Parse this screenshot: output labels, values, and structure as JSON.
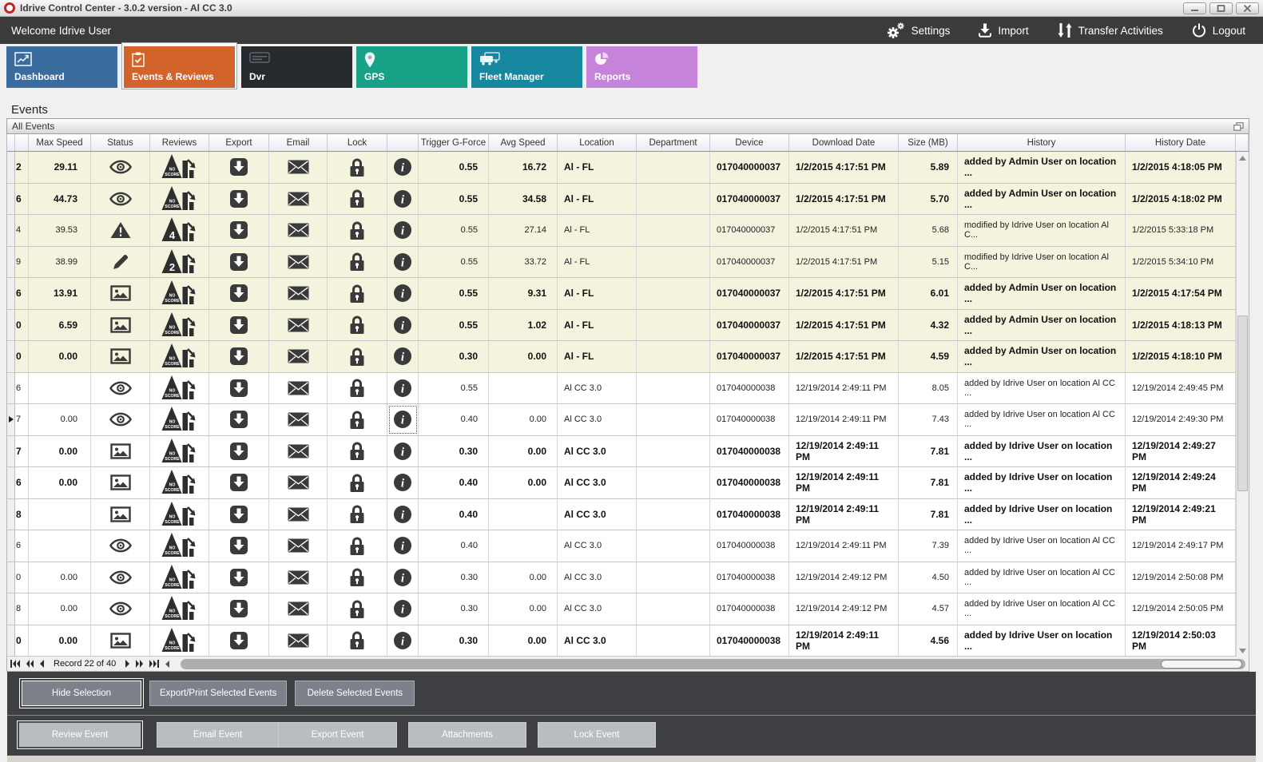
{
  "window": {
    "title": "Idrive Control Center - 3.0.2 version - Al CC 3.0",
    "controls": [
      "minimize",
      "maximize",
      "close"
    ]
  },
  "topbar": {
    "welcome": "Welcome Idrive User",
    "actions": [
      {
        "label": "Settings",
        "icon": "gears-icon"
      },
      {
        "label": "Import",
        "icon": "import-icon"
      },
      {
        "label": "Transfer Activities",
        "icon": "transfer-arrows-icon"
      },
      {
        "label": "Logout",
        "icon": "power-icon"
      }
    ]
  },
  "tabs": [
    {
      "label": "Dashboard",
      "color": "#3a6d9e",
      "icon": "line-chart-icon",
      "selected": false
    },
    {
      "label": "Events & Reviews",
      "color": "#d2632a",
      "icon": "checklist-icon",
      "selected": true
    },
    {
      "label": "Dvr",
      "color": "#26292e",
      "icon": "dvr-icon",
      "selected": false
    },
    {
      "label": "GPS",
      "color": "#17a287",
      "icon": "map-pin-icon",
      "selected": false
    },
    {
      "label": "Fleet Manager",
      "color": "#15889f",
      "icon": "vehicles-icon",
      "selected": false
    },
    {
      "label": "Reports",
      "color": "#c584da",
      "icon": "pie-chart-icon",
      "selected": false
    }
  ],
  "page": {
    "heading": "Events",
    "panel_title": "All Events"
  },
  "table": {
    "columns": [
      "",
      "",
      "Max Speed",
      "Status",
      "Reviews",
      "Export",
      "Email",
      "Lock",
      "",
      "Trigger G-Force",
      "Avg Speed",
      "Location",
      "Department",
      "Device",
      "Download Date",
      "Size (MB)",
      "History",
      "History Date"
    ],
    "rows": [
      {
        "id_last_digit": "2",
        "max_speed": "29.11",
        "status_icon": "eye-icon",
        "review_score": "NO SCORE",
        "trigger_g_force": "0.55",
        "avg_speed": "16.72",
        "location": "Al - FL",
        "department": "",
        "device": "017040000037",
        "download_date": "1/2/2015 4:17:51 PM",
        "size_mb": "5.89",
        "history": "added by Admin User on location ...",
        "history_date": "1/2/2015 4:18:05 PM",
        "bold": true,
        "highlight": true,
        "current": false
      },
      {
        "id_last_digit": "6",
        "max_speed": "44.73",
        "status_icon": "eye-icon",
        "review_score": "NO SCORE",
        "trigger_g_force": "0.55",
        "avg_speed": "34.58",
        "location": "Al - FL",
        "department": "",
        "device": "017040000037",
        "download_date": "1/2/2015 4:17:51 PM",
        "size_mb": "5.70",
        "history": "added by Admin User on location ...",
        "history_date": "1/2/2015 4:18:02 PM",
        "bold": true,
        "highlight": true,
        "current": false
      },
      {
        "id_last_digit": "4",
        "max_speed": "39.53",
        "status_icon": "warning-icon",
        "review_score": "4",
        "trigger_g_force": "0.55",
        "avg_speed": "27.14",
        "location": "Al - FL",
        "department": "",
        "device": "017040000037",
        "download_date": "1/2/2015 4:17:51 PM",
        "size_mb": "5.68",
        "history": "modified by Idrive User on location Al C...",
        "history_date": "1/2/2015 5:33:18 PM",
        "bold": false,
        "highlight": true,
        "current": false
      },
      {
        "id_last_digit": "9",
        "max_speed": "38.99",
        "status_icon": "pencil-icon",
        "review_score": "2",
        "trigger_g_force": "0.55",
        "avg_speed": "33.72",
        "location": "Al - FL",
        "department": "",
        "device": "017040000037",
        "download_date": "1/2/2015 4:17:51 PM",
        "size_mb": "5.15",
        "history": "modified by Idrive User on location Al C...",
        "history_date": "1/2/2015 5:34:10 PM",
        "bold": false,
        "highlight": true,
        "current": false
      },
      {
        "id_last_digit": "6",
        "max_speed": "13.91",
        "status_icon": "image-icon",
        "review_score": "NO SCORE",
        "trigger_g_force": "0.55",
        "avg_speed": "9.31",
        "location": "Al - FL",
        "department": "",
        "device": "017040000037",
        "download_date": "1/2/2015 4:17:51 PM",
        "size_mb": "6.01",
        "history": "added by Admin User on location ...",
        "history_date": "1/2/2015 4:17:54 PM",
        "bold": true,
        "highlight": true,
        "current": false
      },
      {
        "id_last_digit": "0",
        "max_speed": "6.59",
        "status_icon": "image-icon",
        "review_score": "NO SCORE",
        "trigger_g_force": "0.55",
        "avg_speed": "1.02",
        "location": "Al - FL",
        "department": "",
        "device": "017040000037",
        "download_date": "1/2/2015 4:17:51 PM",
        "size_mb": "4.32",
        "history": "added by Admin User on location ...",
        "history_date": "1/2/2015 4:18:13 PM",
        "bold": true,
        "highlight": true,
        "current": false
      },
      {
        "id_last_digit": "0",
        "max_speed": "0.00",
        "status_icon": "image-icon",
        "review_score": "NO SCORE",
        "trigger_g_force": "0.30",
        "avg_speed": "0.00",
        "location": "Al - FL",
        "department": "",
        "device": "017040000037",
        "download_date": "1/2/2015 4:17:51 PM",
        "size_mb": "4.59",
        "history": "added by Admin User on location ...",
        "history_date": "1/2/2015 4:18:10 PM",
        "bold": true,
        "highlight": true,
        "current": false
      },
      {
        "id_last_digit": "6",
        "max_speed": "",
        "status_icon": "eye-icon",
        "review_score": "NO SCORE",
        "trigger_g_force": "0.55",
        "avg_speed": "",
        "location": "Al CC 3.0",
        "department": "",
        "device": "017040000038",
        "download_date": "12/19/2014 2:49:11 PM",
        "size_mb": "8.05",
        "history": "added by Idrive User on location Al CC ...",
        "history_date": "12/19/2014 2:49:45 PM",
        "bold": false,
        "highlight": false,
        "current": false
      },
      {
        "id_last_digit": "7",
        "max_speed": "0.00",
        "status_icon": "eye-icon",
        "review_score": "NO SCORE",
        "trigger_g_force": "0.40",
        "avg_speed": "0.00",
        "location": "Al CC 3.0",
        "department": "",
        "device": "017040000038",
        "download_date": "12/19/2014 2:49:11 PM",
        "size_mb": "7.43",
        "history": "added by Idrive User on location Al CC ...",
        "history_date": "12/19/2014 2:49:30 PM",
        "bold": false,
        "highlight": false,
        "current": true
      },
      {
        "id_last_digit": "7",
        "max_speed": "0.00",
        "status_icon": "image-icon",
        "review_score": "NO SCORE",
        "trigger_g_force": "0.30",
        "avg_speed": "0.00",
        "location": "Al CC 3.0",
        "department": "",
        "device": "017040000038",
        "download_date": "12/19/2014 2:49:11 PM",
        "size_mb": "7.81",
        "history": "added by Idrive User on location ...",
        "history_date": "12/19/2014 2:49:27 PM",
        "bold": true,
        "highlight": false,
        "current": false
      },
      {
        "id_last_digit": "6",
        "max_speed": "0.00",
        "status_icon": "image-icon",
        "review_score": "NO SCORE",
        "trigger_g_force": "0.40",
        "avg_speed": "0.00",
        "location": "Al CC 3.0",
        "department": "",
        "device": "017040000038",
        "download_date": "12/19/2014 2:49:11 PM",
        "size_mb": "7.81",
        "history": "added by Idrive User on location ...",
        "history_date": "12/19/2014 2:49:24 PM",
        "bold": true,
        "highlight": false,
        "current": false
      },
      {
        "id_last_digit": "8",
        "max_speed": "",
        "status_icon": "image-icon",
        "review_score": "NO SCORE",
        "trigger_g_force": "0.40",
        "avg_speed": "",
        "location": "Al CC 3.0",
        "department": "",
        "device": "017040000038",
        "download_date": "12/19/2014 2:49:11 PM",
        "size_mb": "7.81",
        "history": "added by Idrive User on location ...",
        "history_date": "12/19/2014 2:49:21 PM",
        "bold": true,
        "highlight": false,
        "current": false
      },
      {
        "id_last_digit": "6",
        "max_speed": "",
        "status_icon": "eye-icon",
        "review_score": "NO SCORE",
        "trigger_g_force": "0.40",
        "avg_speed": "",
        "location": "Al CC 3.0",
        "department": "",
        "device": "017040000038",
        "download_date": "12/19/2014 2:49:11 PM",
        "size_mb": "7.39",
        "history": "added by Idrive User on location Al CC ...",
        "history_date": "12/19/2014 2:49:17 PM",
        "bold": false,
        "highlight": false,
        "current": false
      },
      {
        "id_last_digit": "0",
        "max_speed": "0.00",
        "status_icon": "eye-icon",
        "review_score": "NO SCORE",
        "trigger_g_force": "0.30",
        "avg_speed": "0.00",
        "location": "Al CC 3.0",
        "department": "",
        "device": "017040000038",
        "download_date": "12/19/2014 2:49:12 PM",
        "size_mb": "4.50",
        "history": "added by Idrive User on location Al CC ...",
        "history_date": "12/19/2014 2:50:08 PM",
        "bold": false,
        "highlight": false,
        "current": false
      },
      {
        "id_last_digit": "8",
        "max_speed": "0.00",
        "status_icon": "eye-icon",
        "review_score": "NO SCORE",
        "trigger_g_force": "0.30",
        "avg_speed": "0.00",
        "location": "Al CC 3.0",
        "department": "",
        "device": "017040000038",
        "download_date": "12/19/2014 2:49:12 PM",
        "size_mb": "4.57",
        "history": "added by Idrive User on location Al CC ...",
        "history_date": "12/19/2014 2:50:05 PM",
        "bold": false,
        "highlight": false,
        "current": false
      },
      {
        "id_last_digit": "0",
        "max_speed": "0.00",
        "status_icon": "image-icon",
        "review_score": "NO SCORE",
        "trigger_g_force": "0.30",
        "avg_speed": "0.00",
        "location": "Al CC 3.0",
        "department": "",
        "device": "017040000038",
        "download_date": "12/19/2014 2:49:11 PM",
        "size_mb": "4.56",
        "history": "added by Idrive User on location ...",
        "history_date": "12/19/2014 2:50:03 PM",
        "bold": true,
        "highlight": false,
        "current": false
      }
    ]
  },
  "pager": {
    "label": "Record 22 of 40",
    "nav_icons": [
      "first",
      "prev-page",
      "prev",
      "next",
      "next-page",
      "last"
    ]
  },
  "actions_bar": {
    "buttons": [
      "Hide Selection",
      "Export/Print Selected Events",
      "Delete Selected  Events"
    ]
  },
  "event_actions_bar": {
    "buttons": [
      "Review Event",
      "Email Event",
      "Export Event",
      "Attachments",
      "Lock Event"
    ]
  },
  "colors": {
    "highlight_row": "#f3f3de",
    "topbar": "#3b3b3b",
    "icon": "#3a3a3a",
    "selected_tab": "#d2632a"
  }
}
